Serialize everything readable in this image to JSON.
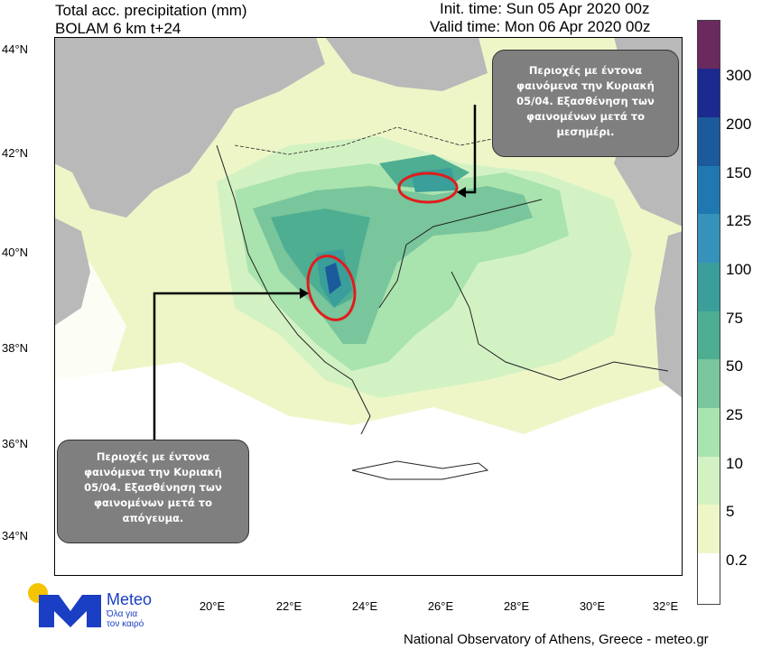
{
  "header": {
    "title_line1": "Total acc. precipitation (mm)",
    "title_line2": "BOLAM 6 km t+24",
    "init_time": "Init. time: Sun 05 Apr 2020 00z",
    "valid_time": "Valid time: Mon 06 Apr 2020 00z"
  },
  "axes": {
    "lat_labels": [
      "44°N",
      "42°N",
      "40°N",
      "38°N",
      "36°N",
      "34°N"
    ],
    "lon_labels": [
      "20°E",
      "22°E",
      "24°E",
      "26°E",
      "28°E",
      "30°E",
      "32°E"
    ]
  },
  "colorbar": {
    "labels": [
      "300",
      "200",
      "150",
      "125",
      "100",
      "75",
      "50",
      "25",
      "10",
      "5",
      "0.2"
    ],
    "colors": [
      "#6b2a5e",
      "#1c2a8f",
      "#1b5a9b",
      "#1f79b0",
      "#3592bb",
      "#3a9e9a",
      "#4eae92",
      "#79c59c",
      "#a9e3ad",
      "#d3f2c3",
      "#eef6c8",
      "#ffffff"
    ]
  },
  "annotations": {
    "north_note": "Περιοχές με έντονα φαινόμενα την Κυριακή 05/04. Εξασθένηση των φαινομένων μετά το μεσημέρι.",
    "south_note": "Περιοχές με έντονα φαινόμενα την Κυριακή 05/04. Εξασθένηση των φαινομένων μετά το απόγευμα."
  },
  "logo": {
    "brand": "Meteo",
    "tagline_line1": "Όλα για",
    "tagline_line2": "τον καιρό"
  },
  "footer": {
    "credit": "National Observatory of Athens, Greece - meteo.gr"
  },
  "colors": {
    "land_gray": "#b9b9b9",
    "precip_light": "#eef6c8",
    "highlight_ellipse": "#e21b1b"
  }
}
